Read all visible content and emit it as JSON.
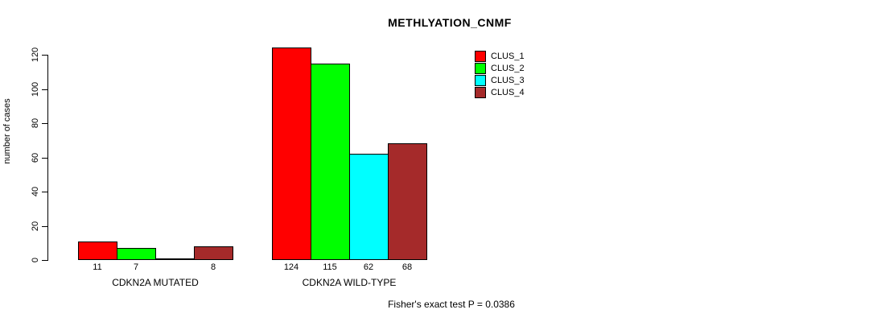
{
  "chart_data": {
    "type": "bar",
    "title": "METHLYATION_CNMF",
    "ylabel": "number of cases",
    "ylim": [
      0,
      120
    ],
    "yticks": [
      0,
      20,
      40,
      60,
      80,
      100,
      120
    ],
    "grid": false,
    "legend_position": "top-right",
    "legend": [
      {
        "name": "CLUS_1",
        "color": "#FF0000"
      },
      {
        "name": "CLUS_2",
        "color": "#00FF00"
      },
      {
        "name": "CLUS_3",
        "color": "#00FFFF"
      },
      {
        "name": "CLUS_4",
        "color": "#A52A2A"
      }
    ],
    "groups": [
      {
        "label": "CDKN2A MUTATED",
        "values": [
          11,
          7,
          0,
          8
        ],
        "bar_labels": [
          "11",
          "7",
          "",
          "8"
        ]
      },
      {
        "label": "CDKN2A WILD-TYPE",
        "values": [
          124,
          115,
          62,
          68
        ],
        "bar_labels": [
          "124",
          "115",
          "62",
          "68"
        ]
      }
    ],
    "footnote": "Fisher's exact test P = 0.0386"
  }
}
